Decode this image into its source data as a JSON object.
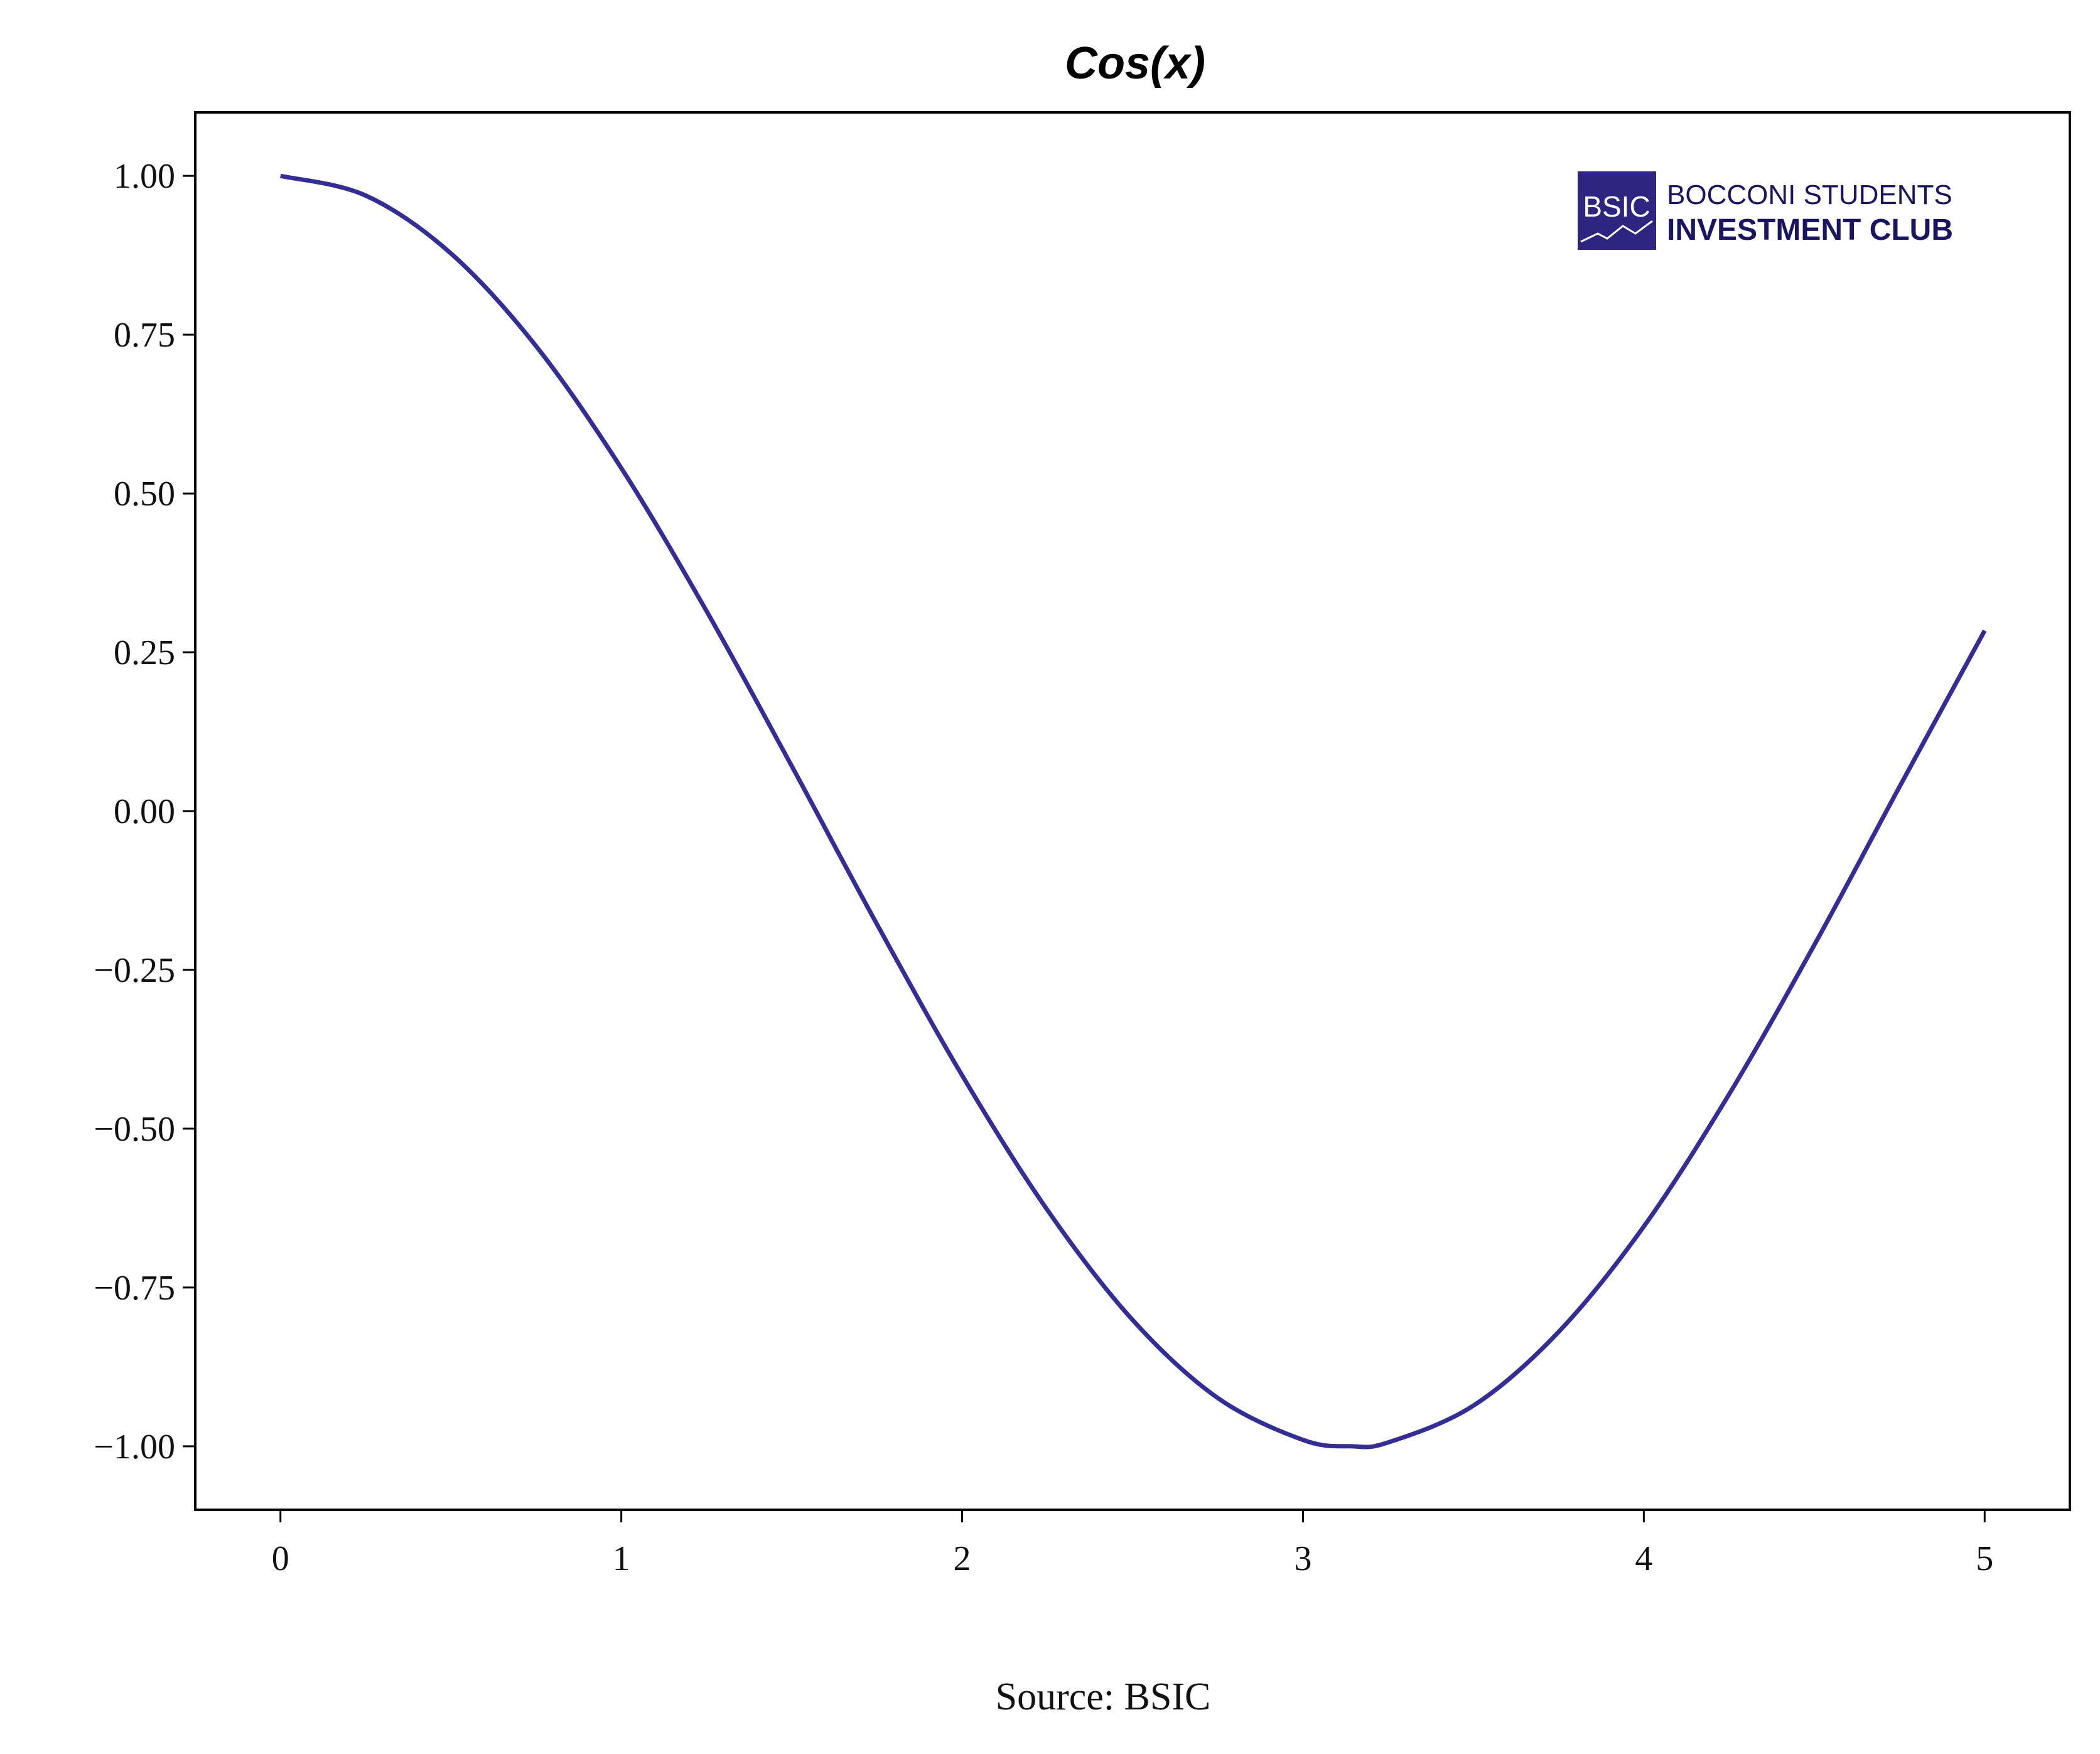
{
  "chart_data": {
    "type": "line",
    "title": "Cos(x)",
    "xlabel": "",
    "ylabel": "",
    "xlim": [
      -0.25,
      5.25
    ],
    "ylim": [
      -1.1,
      1.1
    ],
    "x_ticks": [
      0,
      1,
      2,
      3,
      4,
      5
    ],
    "x_tick_labels": [
      "0",
      "1",
      "2",
      "3",
      "4",
      "5"
    ],
    "y_ticks": [
      1.0,
      0.75,
      0.5,
      0.25,
      0.0,
      -0.25,
      -0.5,
      -0.75,
      -1.0
    ],
    "y_tick_labels": [
      "1.00",
      "0.75",
      "0.50",
      "0.25",
      "0.00",
      "−0.25",
      "−0.50",
      "−0.75",
      "−1.00"
    ],
    "grid": false,
    "series": [
      {
        "color": "#342d94",
        "x": [
          0,
          0.25,
          0.5,
          0.75,
          1.0,
          1.25,
          1.5,
          1.75,
          2.0,
          2.25,
          2.5,
          2.75,
          3.0,
          3.14,
          3.25,
          3.5,
          3.75,
          4.0,
          4.25,
          4.5,
          4.75,
          5.0
        ],
        "y": [
          1.0,
          0.969,
          0.878,
          0.732,
          0.54,
          0.315,
          0.071,
          -0.178,
          -0.416,
          -0.628,
          -0.801,
          -0.924,
          -0.99,
          -1.0,
          -0.994,
          -0.936,
          -0.82,
          -0.654,
          -0.446,
          -0.211,
          0.038,
          0.284
        ]
      }
    ],
    "source": "Source: BSIC"
  },
  "logo": {
    "box_text": "BSIC",
    "line1": "BOCCONI STUDENTS",
    "line2": "INVESTMENT CLUB",
    "color": "#2d2580"
  }
}
